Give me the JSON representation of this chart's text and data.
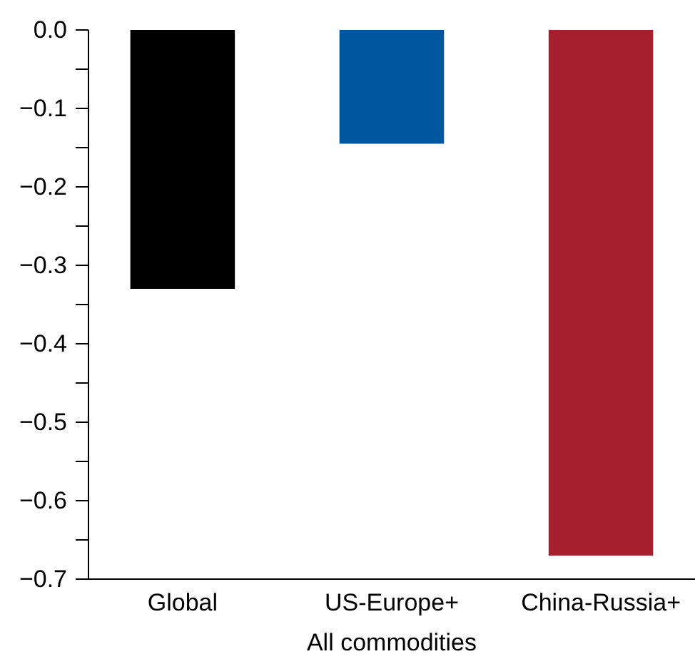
{
  "chart_data": {
    "type": "bar",
    "xlabel": "All commodities",
    "categories": [
      "Global",
      "US-Europe+",
      "China-Russia+"
    ],
    "values": [
      -0.33,
      -0.145,
      -0.67
    ],
    "colors": [
      "#000000",
      "#0057a0",
      "#a51f2e"
    ],
    "ylim": [
      -0.7,
      0
    ],
    "yticks": [
      {
        "value": 0,
        "label": "0.0"
      },
      {
        "value": -0.05,
        "label": null
      },
      {
        "value": -0.1,
        "label": "−0.1"
      },
      {
        "value": -0.15,
        "label": null
      },
      {
        "value": -0.2,
        "label": "−0.2"
      },
      {
        "value": -0.25,
        "label": null
      },
      {
        "value": -0.3,
        "label": "−0.3"
      },
      {
        "value": -0.35,
        "label": null
      },
      {
        "value": -0.4,
        "label": "−0.4"
      },
      {
        "value": -0.45,
        "label": null
      },
      {
        "value": -0.5,
        "label": "−0.5"
      },
      {
        "value": -0.55,
        "label": null
      },
      {
        "value": -0.6,
        "label": "−0.6"
      },
      {
        "value": -0.65,
        "label": null
      },
      {
        "value": -0.7,
        "label": "−0.7"
      }
    ]
  }
}
